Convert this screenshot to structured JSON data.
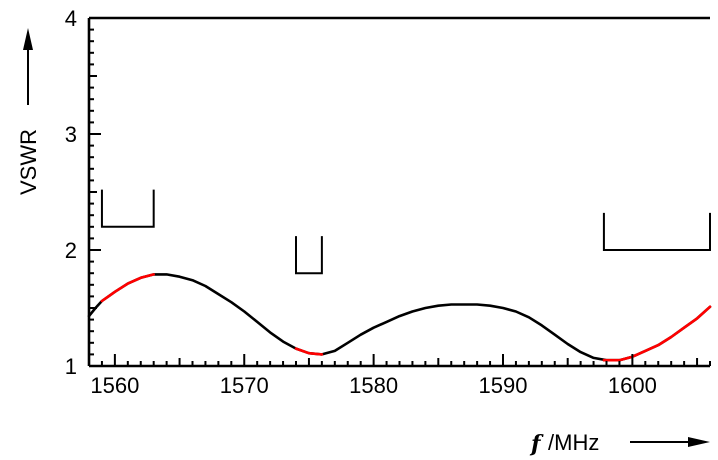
{
  "chart_data": {
    "type": "line",
    "xlabel_italic": "f",
    "xlabel_unit": "/MHz",
    "ylabel": "VSWR",
    "xlim": [
      1558,
      1606
    ],
    "ylim": [
      1,
      4
    ],
    "x_ticks": [
      1560,
      1570,
      1580,
      1590,
      1600
    ],
    "y_ticks": [
      1,
      2,
      3,
      4
    ],
    "grid": false,
    "series": [
      {
        "color": "#000000",
        "points": [
          [
            1558,
            1.43
          ],
          [
            1558.5,
            1.5
          ],
          [
            1559,
            1.56
          ],
          [
            1559.5,
            1.6
          ],
          [
            1560,
            1.64
          ],
          [
            1561,
            1.71
          ],
          [
            1562,
            1.76
          ],
          [
            1563,
            1.79
          ],
          [
            1564,
            1.79
          ],
          [
            1565,
            1.77
          ],
          [
            1566,
            1.74
          ],
          [
            1567,
            1.69
          ],
          [
            1568,
            1.62
          ],
          [
            1569,
            1.55
          ],
          [
            1570,
            1.47
          ],
          [
            1571,
            1.38
          ],
          [
            1572,
            1.29
          ],
          [
            1573,
            1.21
          ],
          [
            1574,
            1.15
          ],
          [
            1575,
            1.11
          ],
          [
            1576,
            1.1
          ],
          [
            1577,
            1.13
          ],
          [
            1578,
            1.2
          ],
          [
            1579,
            1.27
          ],
          [
            1580,
            1.33
          ],
          [
            1581,
            1.38
          ],
          [
            1582,
            1.43
          ],
          [
            1583,
            1.47
          ],
          [
            1584,
            1.5
          ],
          [
            1585,
            1.52
          ],
          [
            1586,
            1.53
          ],
          [
            1587,
            1.53
          ],
          [
            1588,
            1.53
          ],
          [
            1589,
            1.52
          ],
          [
            1590,
            1.5
          ],
          [
            1591,
            1.47
          ],
          [
            1592,
            1.42
          ],
          [
            1593,
            1.35
          ],
          [
            1594,
            1.27
          ],
          [
            1595,
            1.19
          ],
          [
            1596,
            1.12
          ],
          [
            1597,
            1.07
          ],
          [
            1598,
            1.05
          ],
          [
            1599,
            1.05
          ],
          [
            1600,
            1.08
          ],
          [
            1601,
            1.13
          ],
          [
            1602,
            1.18
          ],
          [
            1603,
            1.25
          ],
          [
            1604,
            1.33
          ],
          [
            1605,
            1.41
          ],
          [
            1606,
            1.51
          ]
        ]
      },
      {
        "color": "#ff0000",
        "points": [
          [
            1559,
            1.56
          ],
          [
            1559.5,
            1.6
          ],
          [
            1560,
            1.64
          ],
          [
            1561,
            1.71
          ],
          [
            1562,
            1.76
          ],
          [
            1563,
            1.79
          ]
        ]
      },
      {
        "color": "#ff0000",
        "points": [
          [
            1574,
            1.15
          ],
          [
            1575,
            1.11
          ],
          [
            1576,
            1.1
          ]
        ]
      },
      {
        "color": "#ff0000",
        "points": [
          [
            1597.8,
            1.05
          ],
          [
            1598,
            1.05
          ],
          [
            1599,
            1.05
          ],
          [
            1600,
            1.08
          ],
          [
            1601,
            1.13
          ],
          [
            1602,
            1.18
          ],
          [
            1603,
            1.25
          ],
          [
            1604,
            1.33
          ],
          [
            1605,
            1.41
          ],
          [
            1606,
            1.51
          ]
        ]
      }
    ],
    "brackets": [
      {
        "x1": 1559,
        "x2": 1563,
        "y_top": 2.52,
        "y_bottom": 2.2
      },
      {
        "x1": 1574,
        "x2": 1576,
        "y_top": 2.12,
        "y_bottom": 1.8
      },
      {
        "x1": 1597.8,
        "x2": 1606,
        "y_top": 2.32,
        "y_bottom": 2.0
      }
    ]
  }
}
